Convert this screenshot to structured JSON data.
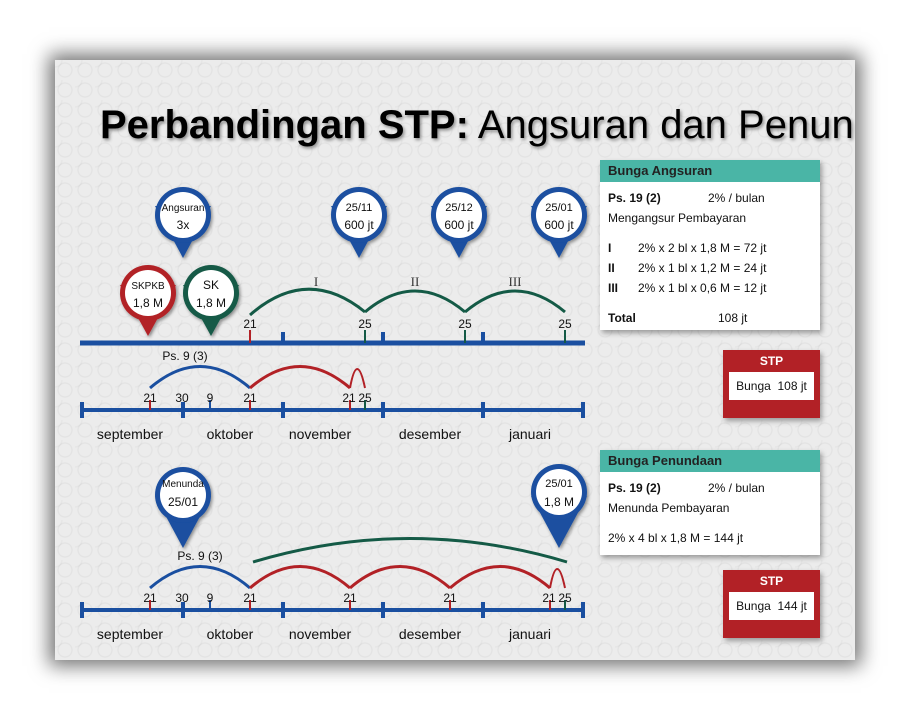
{
  "title": {
    "bold": "Perbandingan STP:",
    "rest": " Angsuran dan Penundaan"
  },
  "colors": {
    "blue": "#1a4fa0",
    "red": "#b22126",
    "green": "#145a46",
    "teal": "#4ab5a6"
  },
  "pins": {
    "angsuran": {
      "label": "Angsuran",
      "value": "3x"
    },
    "d2511": {
      "label": "25/11",
      "value": "600 jt"
    },
    "d2512": {
      "label": "25/12",
      "value": "600 jt"
    },
    "d2501": {
      "label": "25/01",
      "value": "600 jt"
    },
    "skpkb": {
      "label": "SKPKB",
      "value": "1,8 M"
    },
    "sk": {
      "label": "SK",
      "value": "1,8 M"
    },
    "menunda": {
      "label": "Menunda",
      "value": "25/01"
    },
    "d2501b": {
      "label": "25/01",
      "value": "1,8 M"
    }
  },
  "top_timeline": {
    "ticks": {
      "t21": "21",
      "t25a": "25",
      "t25b": "25",
      "t25c": "25"
    },
    "romans": {
      "r1": "I",
      "r2": "II",
      "r3": "III"
    }
  },
  "mid_timeline": {
    "ps_label": "Ps. 9 (3)",
    "ticks": {
      "a": "21",
      "b": "30",
      "c": "9",
      "d": "21",
      "e": "21",
      "f": "25"
    },
    "months": {
      "m1": "september",
      "m2": "oktober",
      "m3": "november",
      "m4": "desember",
      "m5": "januari"
    }
  },
  "bottom_timeline": {
    "ps_label": "Ps. 9 (3)",
    "ticks": {
      "a": "21",
      "b": "30",
      "c": "9",
      "d": "21",
      "e": "21",
      "f": "21",
      "g": "21",
      "h": "25"
    },
    "months": {
      "m1": "september",
      "m2": "oktober",
      "m3": "november",
      "m4": "desember",
      "m5": "januari"
    }
  },
  "panel_angsuran": {
    "head": "Bunga Angsuran",
    "ps": "Ps. 19 (2)",
    "rate": "2% / bulan",
    "desc": "Mengangsur Pembayaran",
    "rows": [
      {
        "k": "I",
        "v": "2% x 2 bl x 1,8 M = 72 jt"
      },
      {
        "k": "II",
        "v": "2% x 1 bl x 1,2 M = 24 jt"
      },
      {
        "k": "III",
        "v": "2% x 1 bl x 0,6 M = 12 jt"
      }
    ],
    "total_label": "Total",
    "total_value": "108 jt"
  },
  "stp_angsuran": {
    "head": "STP",
    "label": "Bunga",
    "value": "108 jt"
  },
  "panel_penundaan": {
    "head": "Bunga Penundaan",
    "ps": "Ps. 19 (2)",
    "rate": "2% / bulan",
    "desc": "Menunda Pembayaran",
    "calc": "2% x 4 bl x 1,8 M = 144 jt"
  },
  "stp_penundaan": {
    "head": "STP",
    "label": "Bunga",
    "value": "144 jt"
  }
}
